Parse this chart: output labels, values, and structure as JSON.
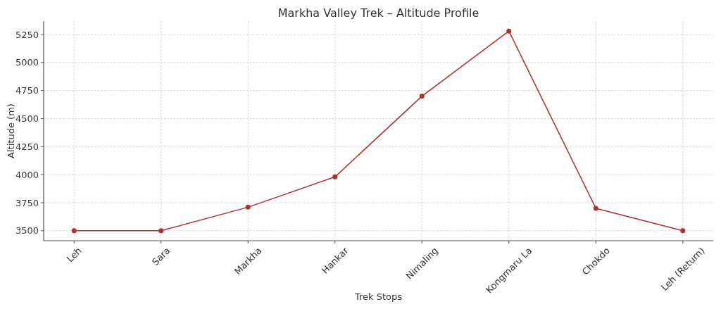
{
  "chart_data": {
    "type": "line",
    "title": "Markha Valley Trek – Altitude Profile",
    "xlabel": "Trek Stops",
    "ylabel": "Altitude (m)",
    "categories": [
      "Leh",
      "Sara",
      "Markha",
      "Hankar",
      "Nimaling",
      "Kongmaru La",
      "Chokdo",
      "Leh (Return)"
    ],
    "series": [
      {
        "color": "#b03030",
        "values": [
          3500,
          3500,
          3710,
          3980,
          4700,
          5280,
          3700,
          3500
        ]
      }
    ],
    "ylim": [
      3411,
      5369
    ],
    "yticks": [
      3500,
      3750,
      4000,
      4250,
      4500,
      4750,
      5000,
      5250
    ],
    "grid": true,
    "marker": "circle",
    "line_style": "solid"
  }
}
